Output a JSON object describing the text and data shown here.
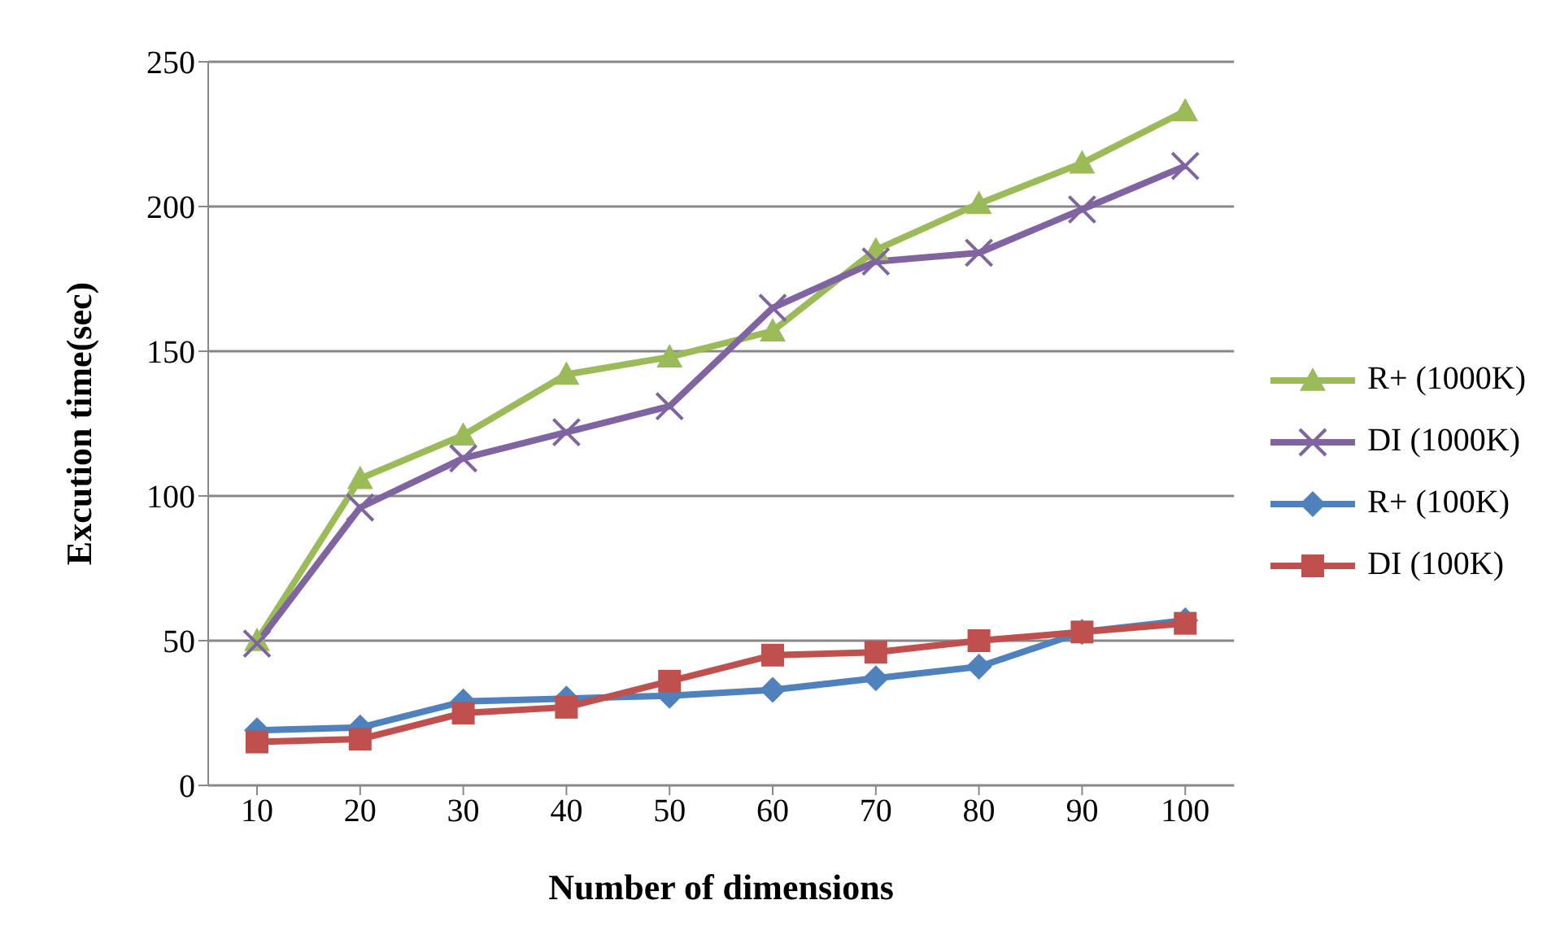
{
  "chart_data": {
    "type": "line",
    "xlabel": "Number of dimensions",
    "ylabel": "Excution time(sec)",
    "categories": [
      "10",
      "20",
      "30",
      "40",
      "50",
      "60",
      "70",
      "80",
      "90",
      "100"
    ],
    "series": [
      {
        "name": "R+ (1000K)",
        "color": "#9bbb59",
        "marker": "triangle",
        "values": [
          50,
          106,
          121,
          142,
          148,
          157,
          185,
          201,
          215,
          233
        ]
      },
      {
        "name": "DI (1000K)",
        "color": "#8064a2",
        "marker": "cross",
        "values": [
          49,
          96,
          113,
          122,
          131,
          165,
          181,
          184,
          199,
          214
        ]
      },
      {
        "name": "R+ (100K)",
        "color": "#4f81bd",
        "marker": "diamond",
        "values": [
          19,
          20,
          29,
          30,
          31,
          33,
          37,
          41,
          53,
          57
        ]
      },
      {
        "name": "DI (100K)",
        "color": "#c0504d",
        "marker": "square",
        "values": [
          15,
          16,
          25,
          27,
          36,
          45,
          46,
          50,
          53,
          56
        ]
      }
    ],
    "ylim": [
      0,
      250
    ],
    "yticks": [
      0,
      50,
      100,
      150,
      200,
      250
    ],
    "grid": "y",
    "legend": "right",
    "line_style": "solid"
  }
}
